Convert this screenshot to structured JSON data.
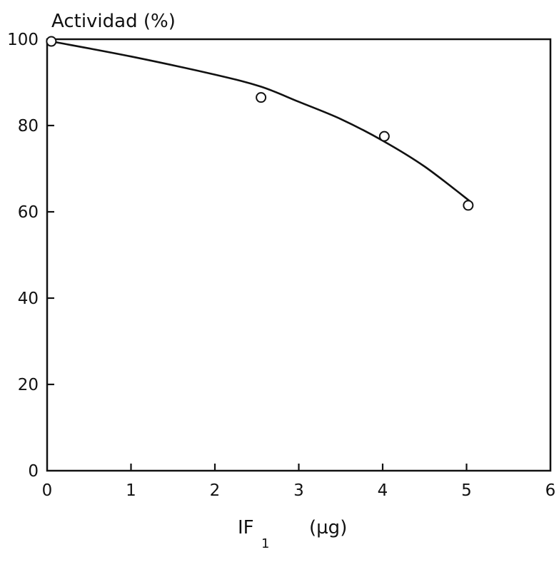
{
  "chart_data": {
    "type": "scatter",
    "ylabel": "Actividad (%)",
    "xlabel": {
      "symbol": "IF",
      "subscript": "1",
      "unit": "(µg)"
    },
    "xlim": [
      0,
      6
    ],
    "ylim": [
      0,
      100
    ],
    "x_ticks": [
      0,
      1,
      2,
      3,
      4,
      5,
      6
    ],
    "y_ticks": [
      0,
      20,
      40,
      60,
      80,
      100
    ],
    "x_tick_labels": [
      "0",
      "1",
      "2",
      "3",
      "4",
      "5",
      "6"
    ],
    "y_tick_labels": [
      "0",
      "20",
      "40",
      "60",
      "80",
      "100"
    ],
    "grid": false,
    "series": [
      {
        "marker": "open-circle",
        "points": [
          {
            "x": 0.05,
            "y": 99.5
          },
          {
            "x": 2.55,
            "y": 86.5
          },
          {
            "x": 4.02,
            "y": 77.5
          },
          {
            "x": 5.02,
            "y": 61.5
          }
        ]
      }
    ],
    "fit_curve": [
      {
        "x": 0.05,
        "y": 99.5
      },
      {
        "x": 1.0,
        "y": 96.0
      },
      {
        "x": 2.0,
        "y": 91.8
      },
      {
        "x": 2.55,
        "y": 89.0
      },
      {
        "x": 3.0,
        "y": 85.5
      },
      {
        "x": 3.5,
        "y": 81.5
      },
      {
        "x": 4.0,
        "y": 76.5
      },
      {
        "x": 4.5,
        "y": 70.5
      },
      {
        "x": 5.07,
        "y": 62.0
      }
    ]
  }
}
